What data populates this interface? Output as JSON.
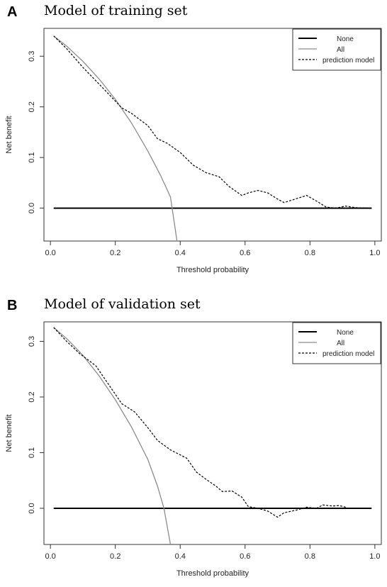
{
  "figure": {
    "panels": [
      {
        "letter": "A",
        "title": "Model of training set"
      },
      {
        "letter": "B",
        "title": "Model of validation set"
      }
    ]
  },
  "chart_data": [
    {
      "type": "line",
      "panel": "A",
      "title": "Model of training set",
      "xlabel": "Threshold probability",
      "ylabel": "Net benefit",
      "xlim": [
        -0.02,
        1.02
      ],
      "ylim": [
        -0.065,
        0.355
      ],
      "xticks": [
        0.0,
        0.2,
        0.4,
        0.6,
        0.8,
        1.0
      ],
      "xtick_labels": [
        "0.0",
        "0.2",
        "0.4",
        "0.6",
        "0.8",
        "1.0"
      ],
      "yticks": [
        0.0,
        0.1,
        0.2,
        0.3
      ],
      "ytick_labels": [
        "0.0",
        "0.1",
        "0.2",
        "0.3"
      ],
      "grid": false,
      "legend": "top-right",
      "series": [
        {
          "name": "None",
          "color": "#000000",
          "style": "solid",
          "width": 2,
          "x": [
            0.01,
            0.99
          ],
          "y": [
            0.0,
            0.0
          ]
        },
        {
          "name": "All",
          "color": "#8c8c8c",
          "style": "solid",
          "width": 1.3,
          "x": [
            0.01,
            0.05,
            0.1,
            0.15,
            0.2,
            0.25,
            0.3,
            0.34,
            0.37,
            0.39
          ],
          "y": [
            0.34,
            0.32,
            0.29,
            0.255,
            0.215,
            0.168,
            0.113,
            0.064,
            0.022,
            -0.065
          ]
        },
        {
          "name": "prediction model",
          "color": "#000000",
          "style": "dashed",
          "width": 1.2,
          "x": [
            0.01,
            0.05,
            0.1,
            0.15,
            0.18,
            0.22,
            0.25,
            0.3,
            0.33,
            0.36,
            0.4,
            0.44,
            0.48,
            0.52,
            0.55,
            0.59,
            0.61,
            0.64,
            0.67,
            0.7,
            0.72,
            0.75,
            0.79,
            0.82,
            0.85,
            0.88,
            0.91,
            0.94,
            0.99
          ],
          "y": [
            0.34,
            0.315,
            0.278,
            0.245,
            0.225,
            0.198,
            0.187,
            0.163,
            0.137,
            0.128,
            0.11,
            0.085,
            0.07,
            0.062,
            0.043,
            0.025,
            0.03,
            0.035,
            0.03,
            0.018,
            0.011,
            0.017,
            0.025,
            0.014,
            0.002,
            0.0,
            0.004,
            0.001,
            0.0
          ]
        }
      ]
    },
    {
      "type": "line",
      "panel": "B",
      "title": "Model of validation set",
      "xlabel": "Threshold probability",
      "ylabel": "Net benefit",
      "xlim": [
        -0.02,
        1.02
      ],
      "ylim": [
        -0.065,
        0.335
      ],
      "xticks": [
        0.0,
        0.2,
        0.4,
        0.6,
        0.8,
        1.0
      ],
      "xtick_labels": [
        "0.0",
        "0.2",
        "0.4",
        "0.6",
        "0.8",
        "1.0"
      ],
      "yticks": [
        0.0,
        0.1,
        0.2,
        0.3
      ],
      "ytick_labels": [
        "0.0",
        "0.1",
        "0.2",
        "0.3"
      ],
      "grid": false,
      "legend": "top-right",
      "series": [
        {
          "name": "None",
          "color": "#000000",
          "style": "solid",
          "width": 2,
          "x": [
            0.01,
            0.99
          ],
          "y": [
            0.0,
            0.0
          ]
        },
        {
          "name": "All",
          "color": "#8c8c8c",
          "style": "solid",
          "width": 1.3,
          "x": [
            0.01,
            0.05,
            0.1,
            0.15,
            0.2,
            0.25,
            0.3,
            0.33,
            0.35,
            0.37
          ],
          "y": [
            0.325,
            0.305,
            0.275,
            0.238,
            0.195,
            0.146,
            0.088,
            0.04,
            0.0,
            -0.065
          ]
        },
        {
          "name": "prediction model",
          "color": "#000000",
          "style": "dashed",
          "width": 1.2,
          "x": [
            0.01,
            0.05,
            0.09,
            0.14,
            0.18,
            0.22,
            0.26,
            0.3,
            0.33,
            0.37,
            0.4,
            0.42,
            0.45,
            0.48,
            0.51,
            0.53,
            0.56,
            0.59,
            0.61,
            0.64,
            0.67,
            0.7,
            0.72,
            0.76,
            0.79,
            0.82,
            0.84,
            0.87,
            0.89,
            0.91
          ],
          "y": [
            0.325,
            0.3,
            0.278,
            0.256,
            0.222,
            0.188,
            0.173,
            0.145,
            0.122,
            0.105,
            0.096,
            0.09,
            0.065,
            0.052,
            0.04,
            0.03,
            0.031,
            0.02,
            0.003,
            0.0,
            -0.005,
            -0.016,
            -0.008,
            -0.003,
            0.002,
            0.0,
            0.006,
            0.004,
            0.005,
            0.002
          ]
        }
      ]
    }
  ]
}
